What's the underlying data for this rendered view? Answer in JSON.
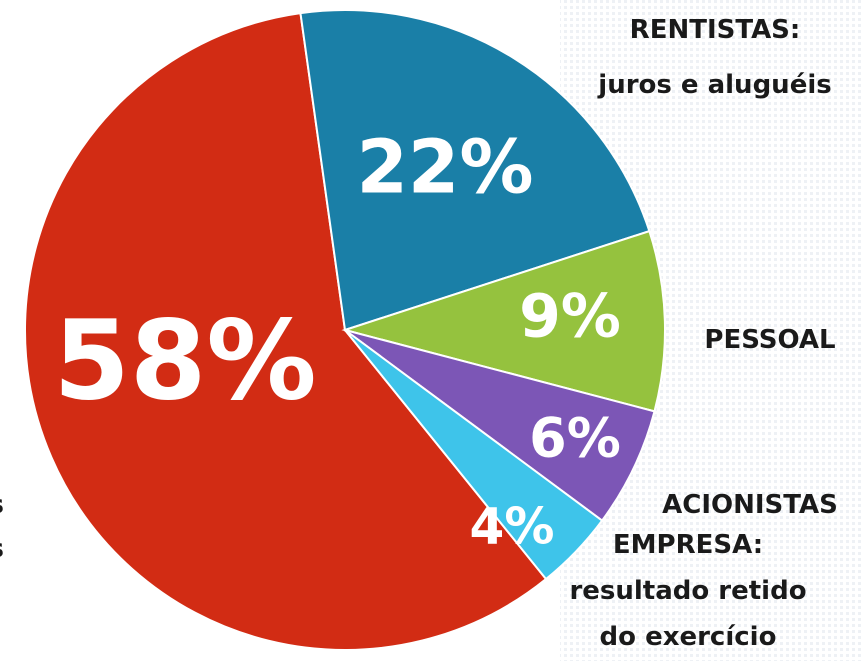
{
  "chart_data": {
    "type": "pie",
    "categories": [
      "s\ns",
      "RENTISTAS:\njuros e aluguéis",
      "PESSOAL",
      "ACIONISTAS",
      "EMPRESA:\nresultado retido\ndo exercício"
    ],
    "values": [
      58,
      22,
      9,
      6,
      4
    ],
    "value_labels": [
      "58%",
      "22%",
      "9%",
      "6%",
      "4%"
    ],
    "colors": [
      "#d22c14",
      "#1a7fa7",
      "#95c23e",
      "#7c56b6",
      "#3ec4ea"
    ]
  }
}
